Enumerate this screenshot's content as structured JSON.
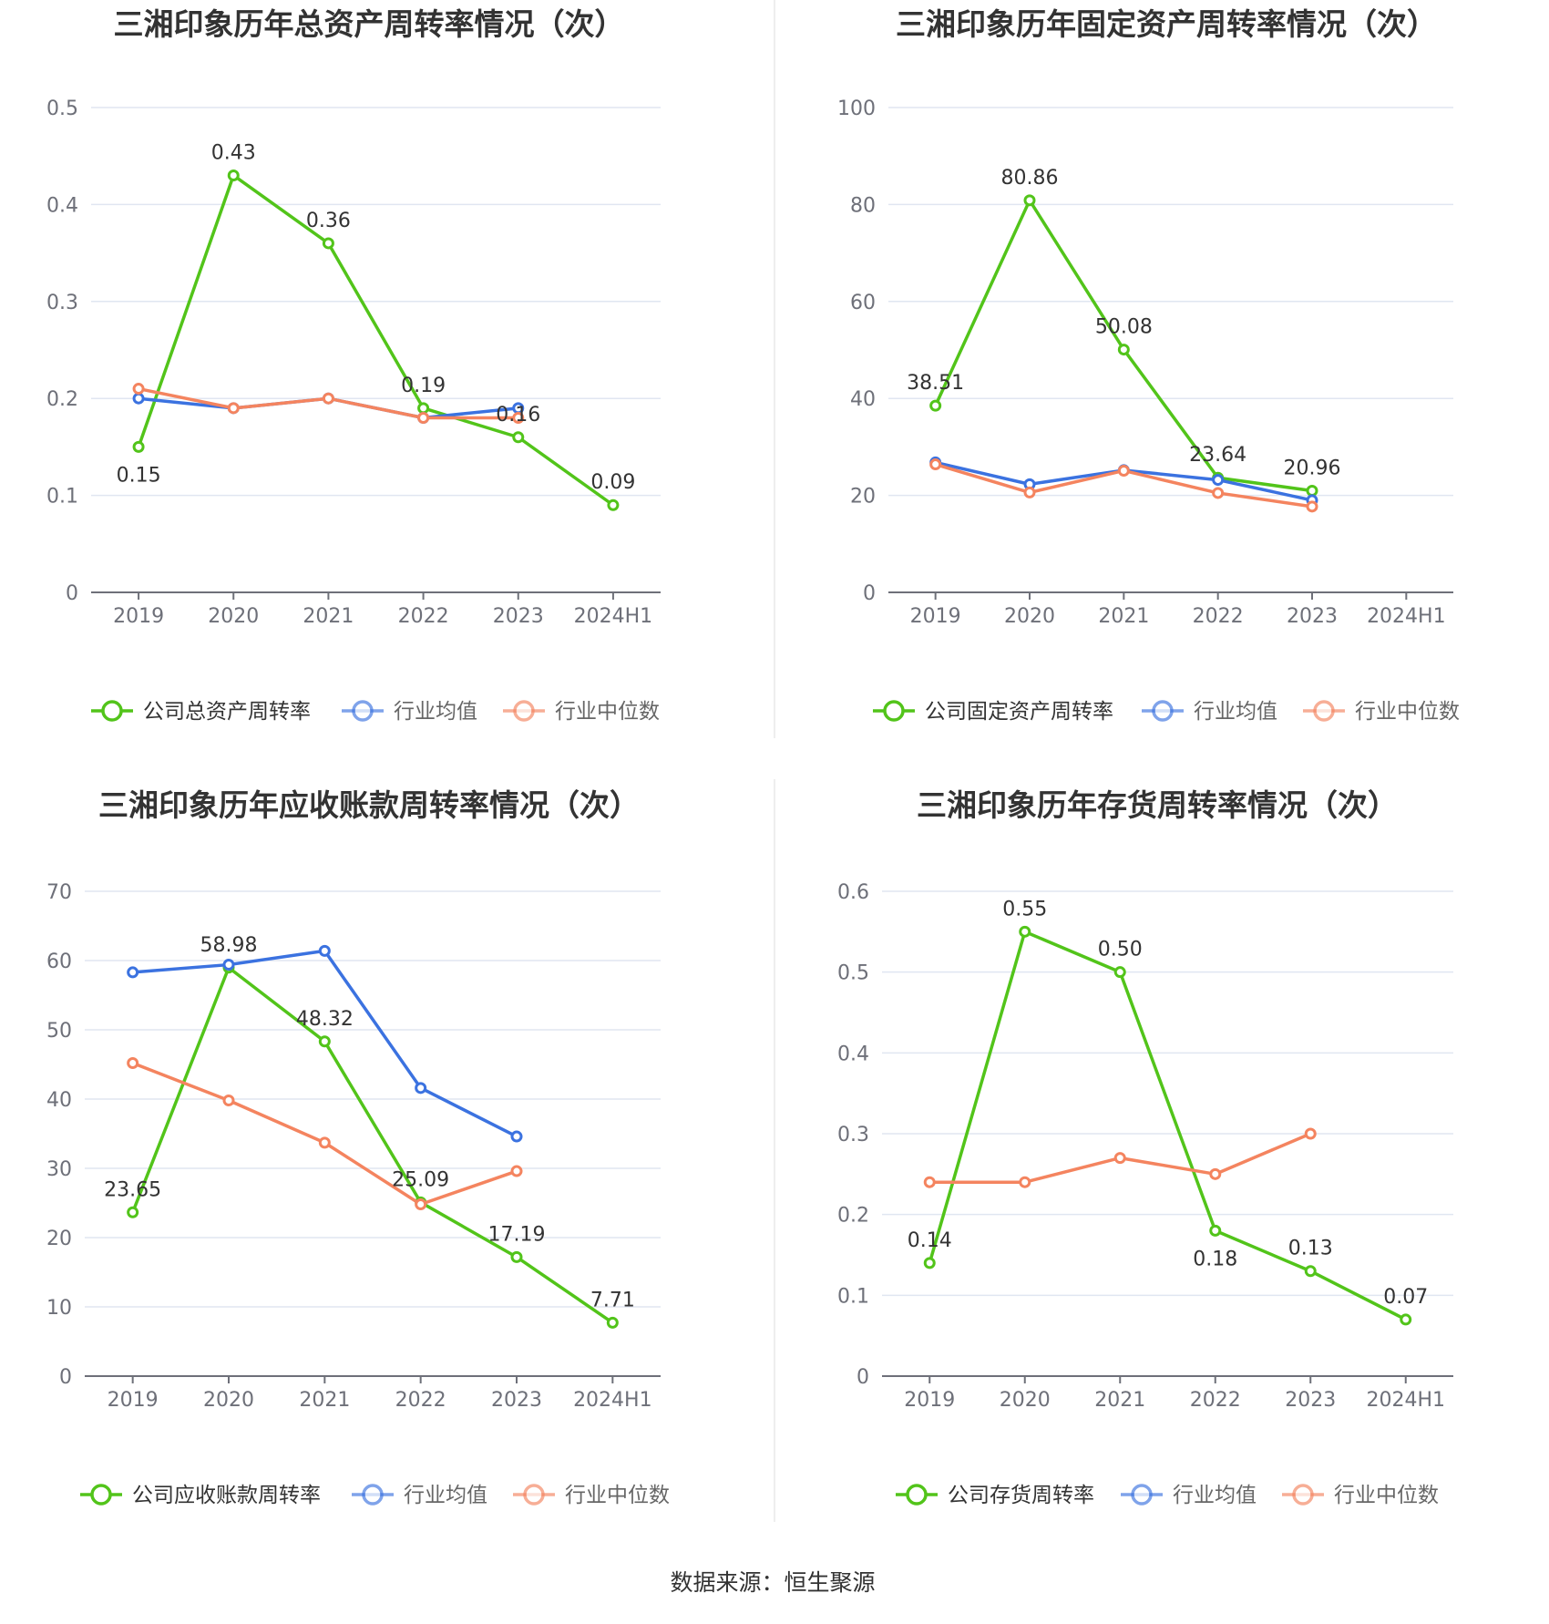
{
  "source": "数据来源：恒生聚源",
  "chart_data": [
    {
      "type": "line",
      "title": "三湘印象历年总资产周转率情况（次）",
      "categories": [
        "2019",
        "2020",
        "2021",
        "2022",
        "2023",
        "2024H1"
      ],
      "y_ticks": [
        "0",
        "0.1",
        "0.2",
        "0.3",
        "0.4",
        "0.5"
      ],
      "ylim": [
        0,
        0.5
      ],
      "grid": true,
      "legend_position": "bottom",
      "series": [
        {
          "name": "公司总资产周转率",
          "color": "#52c41a",
          "values": [
            0.15,
            0.43,
            0.36,
            0.19,
            0.16,
            0.09
          ],
          "labels": [
            "0.15",
            "0.43",
            "0.36",
            "0.19",
            "0.16",
            "0.09"
          ]
        },
        {
          "name": "行业均值",
          "color": "#3b72e0",
          "values": [
            0.2,
            0.19,
            0.2,
            0.18,
            0.19,
            null
          ]
        },
        {
          "name": "行业中位数",
          "color": "#f4845f",
          "values": [
            0.21,
            0.19,
            0.2,
            0.18,
            0.18,
            null
          ]
        }
      ]
    },
    {
      "type": "line",
      "title": "三湘印象历年固定资产周转率情况（次）",
      "categories": [
        "2019",
        "2020",
        "2021",
        "2022",
        "2023",
        "2024H1"
      ],
      "y_ticks": [
        "0",
        "20",
        "40",
        "60",
        "80",
        "100"
      ],
      "ylim": [
        0,
        100
      ],
      "grid": true,
      "legend_position": "bottom",
      "series": [
        {
          "name": "公司固定资产周转率",
          "color": "#52c41a",
          "values": [
            38.51,
            80.86,
            50.08,
            23.64,
            20.96,
            null
          ],
          "labels": [
            "38.51",
            "80.86",
            "50.08",
            "23.64",
            "20.96",
            ""
          ]
        },
        {
          "name": "行业均值",
          "color": "#3b72e0",
          "values": [
            26.8,
            22.3,
            25.2,
            23.2,
            19.0,
            null
          ]
        },
        {
          "name": "行业中位数",
          "color": "#f4845f",
          "values": [
            26.4,
            20.6,
            25.1,
            20.5,
            17.7,
            null
          ]
        }
      ]
    },
    {
      "type": "line",
      "title": "三湘印象历年应收账款周转率情况（次）",
      "categories": [
        "2019",
        "2020",
        "2021",
        "2022",
        "2023",
        "2024H1"
      ],
      "y_ticks": [
        "0",
        "10",
        "20",
        "30",
        "40",
        "50",
        "60",
        "70"
      ],
      "ylim": [
        0,
        70
      ],
      "grid": true,
      "legend_position": "bottom",
      "series": [
        {
          "name": "公司应收账款周转率",
          "color": "#52c41a",
          "values": [
            23.65,
            58.98,
            48.32,
            25.09,
            17.19,
            7.71
          ],
          "labels": [
            "23.65",
            "58.98",
            "48.32",
            "25.09",
            "17.19",
            "7.71"
          ]
        },
        {
          "name": "行业均值",
          "color": "#3b72e0",
          "values": [
            58.3,
            59.4,
            61.4,
            41.6,
            34.6,
            null
          ]
        },
        {
          "name": "行业中位数",
          "color": "#f4845f",
          "values": [
            45.2,
            39.8,
            33.7,
            24.8,
            29.6,
            null
          ]
        }
      ]
    },
    {
      "type": "line",
      "title": "三湘印象历年存货周转率情况（次）",
      "categories": [
        "2019",
        "2020",
        "2021",
        "2022",
        "2023",
        "2024H1"
      ],
      "y_ticks": [
        "0",
        "0.1",
        "0.2",
        "0.3",
        "0.4",
        "0.5",
        "0.6"
      ],
      "ylim": [
        0,
        0.6
      ],
      "grid": true,
      "legend_position": "bottom",
      "series": [
        {
          "name": "公司存货周转率",
          "color": "#52c41a",
          "values": [
            0.14,
            0.55,
            0.5,
            0.18,
            0.13,
            0.07
          ],
          "labels": [
            "0.14",
            "0.55",
            "0.50",
            "0.18",
            "0.13",
            "0.07"
          ]
        },
        {
          "name": "行业均值",
          "color": "#3b72e0",
          "values": [
            null,
            null,
            null,
            null,
            null,
            null
          ]
        },
        {
          "name": "行业中位数",
          "color": "#f4845f",
          "values": [
            0.24,
            0.24,
            0.27,
            0.25,
            0.3,
            null
          ]
        }
      ]
    }
  ]
}
